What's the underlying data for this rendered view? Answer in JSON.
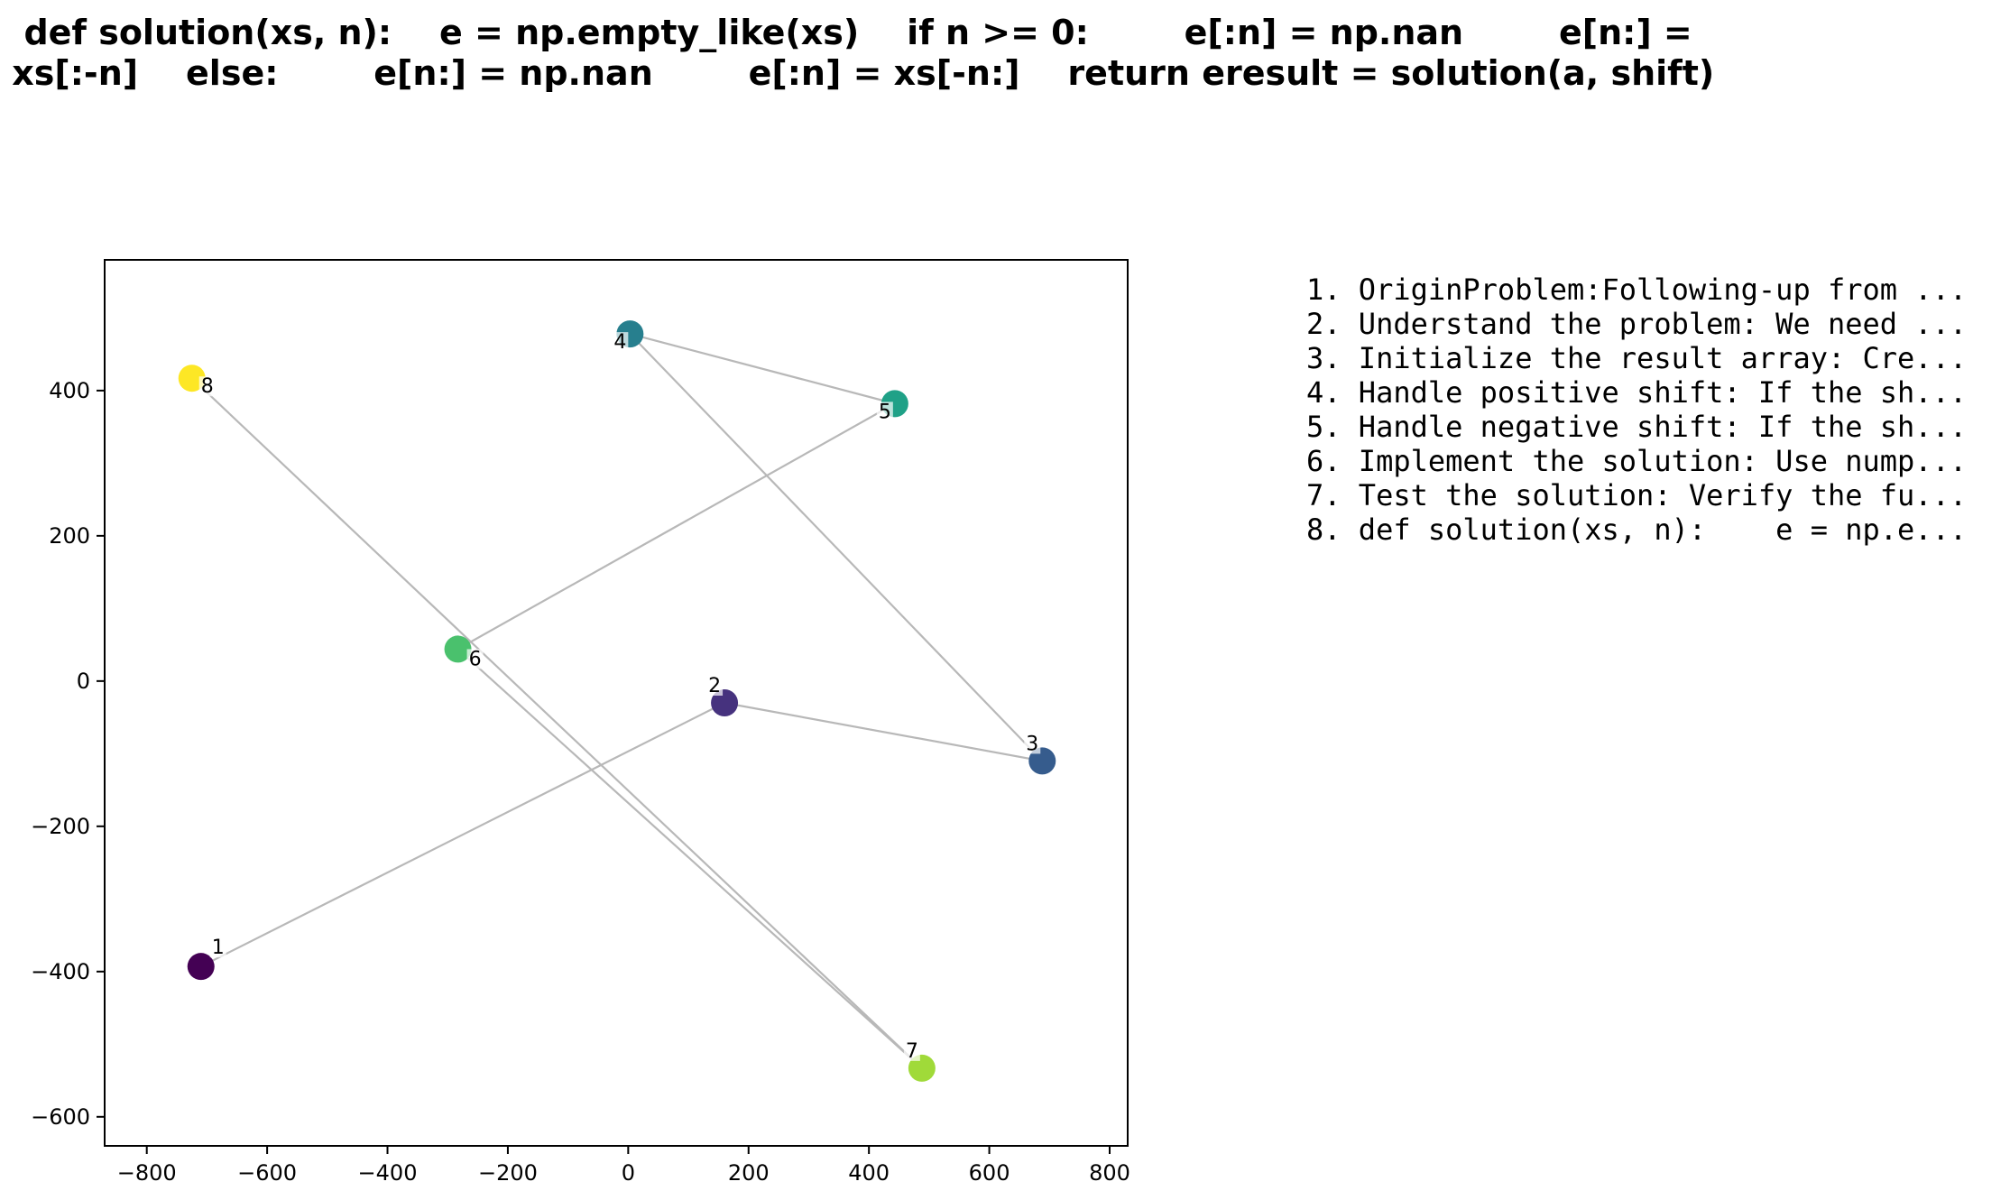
{
  "title_lines": [
    "  def solution(xs, n):    e = np.empty_like(xs)    if n >= 0:        e[:n] = np.nan        e[n:] =",
    " xs[:-n]    else:        e[n:] = np.nan        e[:n] = xs[-n:]    return eresult = solution(a, shift)"
  ],
  "steps": [
    "1. OriginProblem:Following-up from ...",
    "2. Understand the problem: We need ...",
    "3. Initialize the result array: Cre...",
    "4. Handle positive shift: If the sh...",
    "5. Handle negative shift: If the sh...",
    "6. Implement the solution: Use nump...",
    "7. Test the solution: Verify the fu...",
    "8. def solution(xs, n):    e = np.e..."
  ],
  "chart_data": {
    "type": "scatter",
    "title": "",
    "xlabel": "",
    "ylabel": "",
    "xlim": [
      -870,
      830
    ],
    "ylim": [
      -640,
      580
    ],
    "xticks": [
      -800,
      -600,
      -400,
      -200,
      0,
      200,
      400,
      600,
      800
    ],
    "yticks": [
      -600,
      -400,
      -200,
      0,
      200,
      400
    ],
    "grid": false,
    "connect_in_order": true,
    "points": [
      {
        "label": "1",
        "x": -710,
        "y": -393,
        "color": "#440154"
      },
      {
        "label": "2",
        "x": 160,
        "y": -30,
        "color": "#46327e"
      },
      {
        "label": "3",
        "x": 688,
        "y": -110,
        "color": "#365c8d"
      },
      {
        "label": "4",
        "x": 3,
        "y": 478,
        "color": "#277f8e"
      },
      {
        "label": "5",
        "x": 443,
        "y": 382,
        "color": "#1fa187"
      },
      {
        "label": "6",
        "x": -283,
        "y": 44,
        "color": "#4ac16d"
      },
      {
        "label": "7",
        "x": 488,
        "y": -533,
        "color": "#a0da39"
      },
      {
        "label": "8",
        "x": -725,
        "y": 417,
        "color": "#fde725"
      }
    ]
  }
}
